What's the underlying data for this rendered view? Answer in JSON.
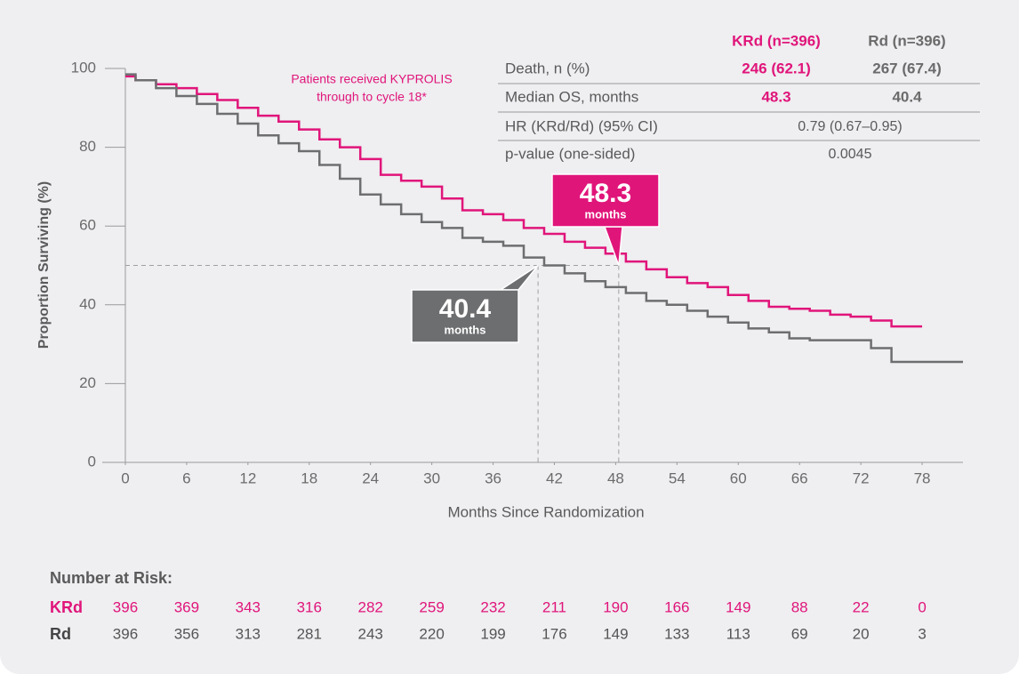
{
  "chart_data": {
    "type": "line",
    "step": true,
    "xlabel": "Months Since Randomization",
    "ylabel": "Proportion Surviving (%)",
    "xlim": [
      -2,
      82
    ],
    "ylim": [
      0,
      100
    ],
    "xticks": [
      0,
      6,
      12,
      18,
      24,
      30,
      36,
      42,
      48,
      54,
      60,
      66,
      72,
      78
    ],
    "yticks": [
      0,
      20,
      40,
      60,
      80,
      100
    ],
    "series": [
      {
        "name": "KRd",
        "color": "#e0157a",
        "x": [
          0,
          1,
          3,
          5,
          7,
          9,
          11,
          13,
          15,
          17,
          19,
          21,
          23,
          25,
          27,
          29,
          31,
          33,
          35,
          37,
          39,
          41,
          43,
          45,
          47,
          49,
          51,
          53,
          55,
          57,
          59,
          61,
          63,
          65,
          67,
          69,
          71,
          73,
          75,
          78
        ],
        "values": [
          98,
          97,
          96,
          95,
          93.5,
          92,
          90,
          88,
          86.5,
          84.5,
          82,
          80,
          77,
          73,
          71.5,
          70,
          67,
          64,
          63,
          61.5,
          59.5,
          58,
          56,
          54.5,
          53,
          51,
          49,
          47,
          45.5,
          44.5,
          42.5,
          41,
          39.5,
          39,
          38.5,
          37.5,
          37,
          36,
          34.5,
          34.5
        ]
      },
      {
        "name": "Rd",
        "color": "#6d6e70",
        "x": [
          0,
          1,
          3,
          5,
          7,
          9,
          11,
          13,
          15,
          17,
          19,
          21,
          23,
          25,
          27,
          29,
          31,
          33,
          35,
          37,
          39,
          41,
          43,
          45,
          47,
          49,
          51,
          53,
          55,
          57,
          59,
          61,
          63,
          65,
          67,
          69,
          71,
          73,
          75,
          82
        ],
        "values": [
          98.5,
          97,
          95,
          93,
          91,
          88.5,
          86,
          83,
          81,
          79,
          75.5,
          72,
          68,
          65.5,
          63,
          61,
          59.5,
          57,
          56,
          55,
          52,
          50,
          48,
          46,
          44.5,
          43,
          41,
          40,
          38.5,
          37,
          35.5,
          34,
          33,
          31.5,
          31,
          31,
          31,
          29,
          25.5,
          25.5
        ]
      }
    ],
    "median_y": 50,
    "callouts": [
      {
        "value": 48.3,
        "unit": "months",
        "color": "#e0157a"
      },
      {
        "value": 40.4,
        "unit": "months",
        "color": "#6d6e70"
      }
    ],
    "annotation": [
      "Patients received KYPROLIS",
      "through to cycle 18*"
    ]
  },
  "stats_table": {
    "header": [
      "KRd (n=396)",
      "Rd (n=396)"
    ],
    "rows": [
      [
        "Death, n (%)",
        "246 (62.1)",
        "267 (67.4)"
      ],
      [
        "Median OS, months",
        "48.3",
        "40.4"
      ],
      [
        "HR (KRd/Rd) (95% CI)",
        "0.79 (0.67–0.95)"
      ],
      [
        "p-value (one-sided)",
        "0.0045"
      ]
    ]
  },
  "risk_table": {
    "title": "Number at Risk:",
    "rows": [
      [
        396,
        369,
        343,
        316,
        282,
        259,
        232,
        211,
        190,
        166,
        149,
        88,
        22,
        0
      ],
      [
        396,
        356,
        313,
        281,
        243,
        220,
        199,
        176,
        149,
        133,
        113,
        69,
        20,
        3
      ]
    ]
  }
}
